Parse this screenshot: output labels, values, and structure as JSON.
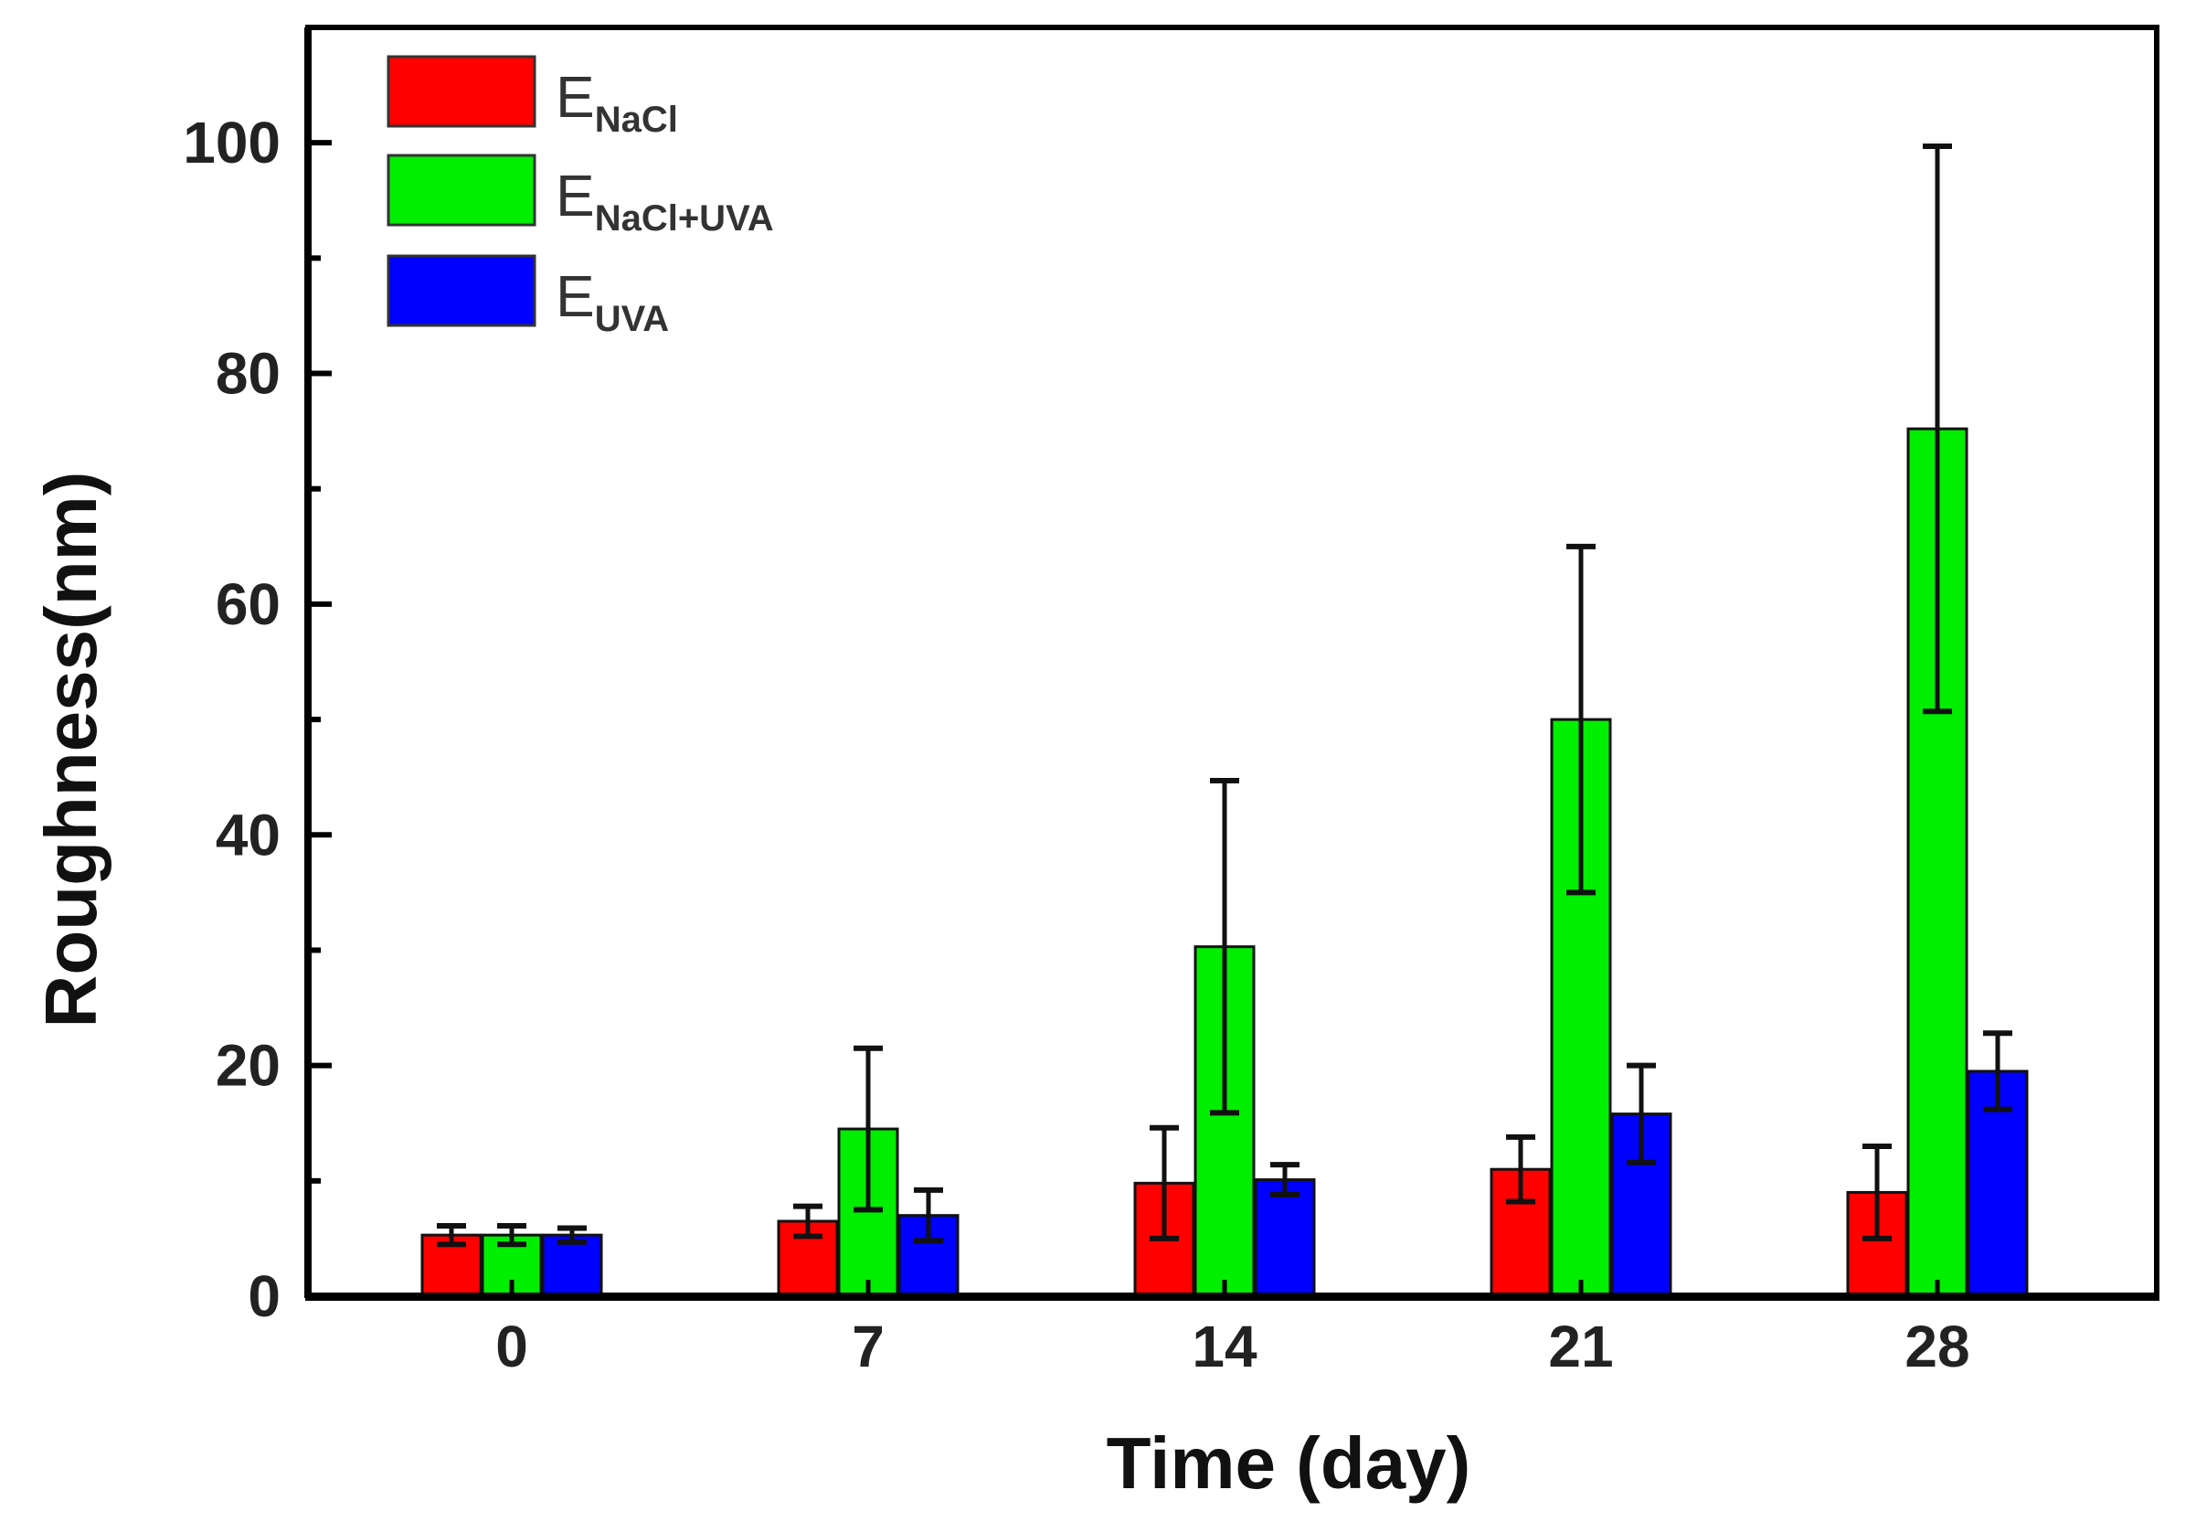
{
  "chart_data": {
    "type": "bar",
    "title": "",
    "xlabel": "Time (day)",
    "ylabel": "Roughness(nm)",
    "ylim": [
      0,
      110
    ],
    "yticks": [
      0,
      20,
      40,
      60,
      80,
      100
    ],
    "categories": [
      "0",
      "7",
      "14",
      "21",
      "28"
    ],
    "series": [
      {
        "name": "E_NaCl",
        "legend_main": "E",
        "legend_sub": "NaCl",
        "color": "#ff0000",
        "values": [
          5.3,
          6.5,
          9.8,
          11,
          9
        ],
        "errors": [
          0.8,
          1.3,
          4.8,
          2.8,
          4
        ]
      },
      {
        "name": "E_NaCl+UVA",
        "legend_main": "E",
        "legend_sub": "NaCl+UVA",
        "color": "#00ee00",
        "values": [
          5.3,
          14.5,
          30.3,
          50,
          75.2
        ],
        "errors": [
          0.8,
          7,
          14.4,
          15,
          24.5
        ]
      },
      {
        "name": "E_UVA",
        "legend_main": "E",
        "legend_sub": "UVA",
        "color": "#0000ff",
        "values": [
          5.3,
          7,
          10.1,
          15.8,
          19.5
        ],
        "errors": [
          0.6,
          2.2,
          1.3,
          4.2,
          3.3
        ]
      }
    ],
    "legend_position": "top-left",
    "grid": false
  }
}
